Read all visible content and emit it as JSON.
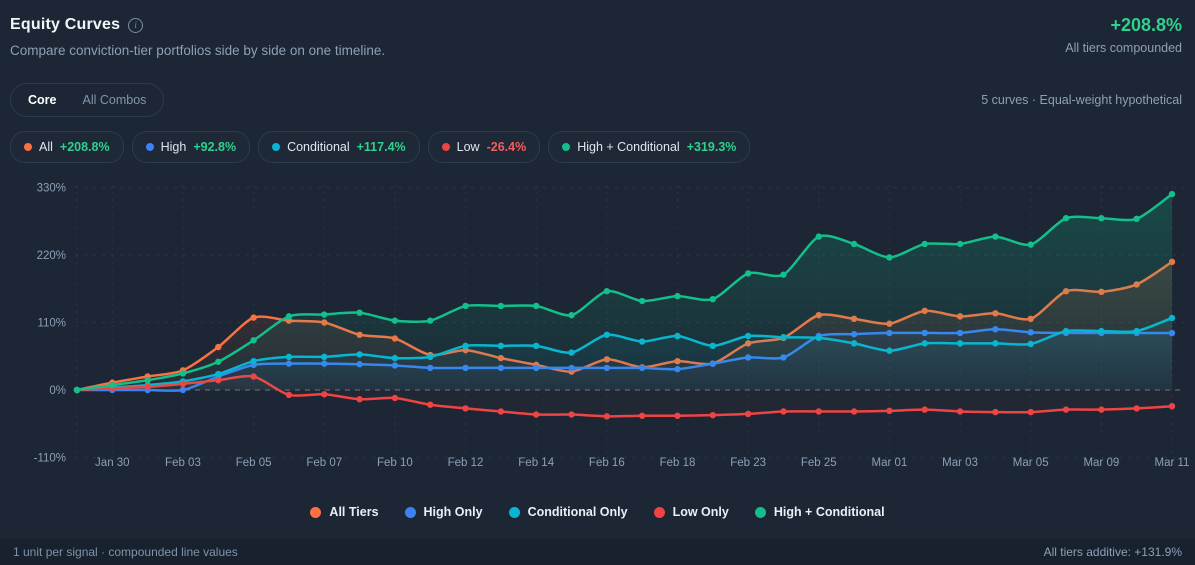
{
  "header": {
    "title": "Equity Curves",
    "subtitle": "Compare conviction-tier portfolios side by side on one timeline.",
    "headline_value": "+208.8%",
    "headline_caption": "All tiers compounded"
  },
  "controls": {
    "tabs": [
      {
        "label": "Core",
        "active": true
      },
      {
        "label": "All Combos",
        "active": false
      }
    ],
    "meta": "5 curves · Equal-weight hypothetical"
  },
  "chips": [
    {
      "label": "All",
      "value": "+208.8%",
      "dot_color": "#f97243",
      "value_color": "#2ed18d"
    },
    {
      "label": "High",
      "value": "+92.8%",
      "dot_color": "#3b82f6",
      "value_color": "#2ed18d"
    },
    {
      "label": "Conditional",
      "value": "+117.4%",
      "dot_color": "#06b6d4",
      "value_color": "#2ed18d"
    },
    {
      "label": "Low",
      "value": "-26.4%",
      "dot_color": "#ef4444",
      "value_color": "#f05f5f"
    },
    {
      "label": "High + Conditional",
      "value": "+319.3%",
      "dot_color": "#13bf8a",
      "value_color": "#2ed18d"
    }
  ],
  "chart_data": {
    "type": "line",
    "title": "Equity Curves",
    "x_labels": [
      "Jan 30",
      "Feb 03",
      "Feb 05",
      "Feb 07",
      "Feb 10",
      "Feb 12",
      "Feb 14",
      "Feb 16",
      "Feb 18",
      "Feb 23",
      "Feb 25",
      "Mar 01",
      "Mar 03",
      "Mar 05",
      "Mar 09",
      "Mar 11"
    ],
    "points_per_series": 32,
    "label_every_nth_point": 2,
    "first_label_point_index": 1,
    "y_ticks": [
      "330%",
      "220%",
      "110%",
      "0%",
      "-110%"
    ],
    "y_tick_values": [
      330,
      220,
      110,
      0,
      -110
    ],
    "ylim": [
      -130,
      345
    ],
    "grid": "dashed",
    "zero_line": true,
    "unit": "%",
    "series": [
      {
        "name": "All Tiers",
        "color": "#f97243",
        "values": [
          0,
          12,
          22,
          32,
          70,
          118,
          113,
          110,
          90,
          84,
          57,
          65,
          52,
          41,
          30,
          50,
          37,
          47,
          43,
          76,
          85,
          122,
          116,
          108,
          129,
          120,
          125,
          116,
          161,
          160,
          172,
          208.8
        ]
      },
      {
        "name": "High Only",
        "color": "#3b82f6",
        "values": [
          0,
          0,
          0,
          0,
          22,
          41,
          43,
          43,
          42,
          40,
          36,
          36,
          36,
          36,
          36,
          36,
          36,
          34,
          43,
          53,
          53,
          88,
          91,
          93,
          93,
          93,
          99,
          94,
          93,
          93,
          93,
          92.8
        ]
      },
      {
        "name": "Conditional Only",
        "color": "#06b6d4",
        "values": [
          0,
          4,
          8,
          14,
          26,
          47,
          54,
          54,
          58,
          52,
          54,
          72,
          72,
          72,
          61,
          90,
          79,
          88,
          72,
          88,
          86,
          85,
          76,
          64,
          76,
          76,
          76,
          75,
          96,
          96,
          96,
          117.4
        ]
      },
      {
        "name": "Low Only",
        "color": "#ef4444",
        "values": [
          0,
          3,
          5,
          10,
          16,
          22,
          -8,
          -7,
          -15,
          -13,
          -24,
          -30,
          -35,
          -40,
          -40,
          -43,
          -42,
          -42,
          -41,
          -39,
          -35,
          -35,
          -35,
          -34,
          -32,
          -35,
          -36,
          -36,
          -32,
          -32,
          -30,
          -26.4
        ]
      },
      {
        "name": "High + Conditional",
        "color": "#13bf8a",
        "values": [
          0,
          8,
          16,
          27,
          46,
          81,
          120,
          123,
          126,
          113,
          113,
          137,
          137,
          137,
          122,
          161,
          145,
          153,
          148,
          190,
          188,
          250,
          238,
          216,
          238,
          238,
          250,
          237,
          280,
          280,
          279,
          319.3
        ]
      }
    ],
    "legend_position": "bottom",
    "legend": [
      "All Tiers",
      "High Only",
      "Conditional Only",
      "Low Only",
      "High + Conditional"
    ]
  },
  "footer": {
    "left": "1 unit per signal · compounded line values",
    "right": "All tiers additive: +131.9%"
  }
}
